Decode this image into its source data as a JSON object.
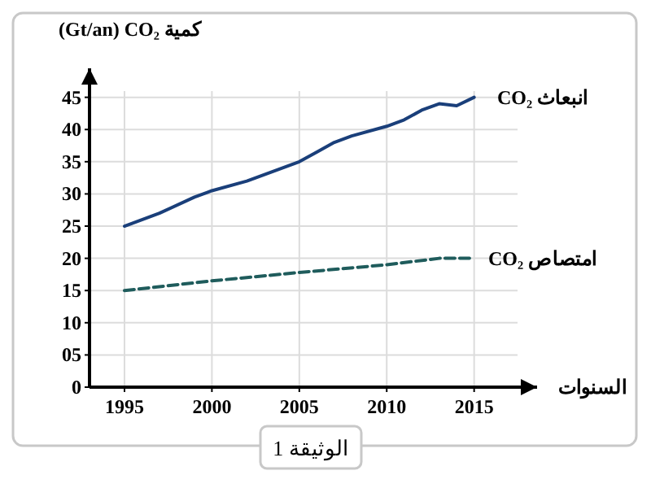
{
  "chart_data": {
    "type": "line",
    "ylabel": "(Gt/an) CO₂ كمية",
    "xlabel": "السنوات",
    "annotations": [
      "الوثيقة 1"
    ],
    "xlim": [
      1993,
      2018.6
    ],
    "xticks": [
      1995,
      2000,
      2005,
      2010,
      2015
    ],
    "ylim": [
      0,
      49.5
    ],
    "yticks": [
      0,
      {
        "value": 5,
        "label": "05"
      },
      10,
      15,
      20,
      25,
      30,
      35,
      40,
      45
    ],
    "grid": true,
    "series": [
      {
        "name": "انبعاث CO₂",
        "color": "#1a3f7a",
        "line_style": "solid",
        "x": [
          1995,
          1997,
          1999,
          2000,
          2002,
          2005,
          2006,
          2007,
          2008,
          2010,
          2011,
          2012,
          2013,
          2014,
          2015
        ],
        "values": [
          25,
          27,
          29.5,
          30.5,
          32,
          35,
          36.5,
          38,
          39,
          40.5,
          41.5,
          43,
          44,
          43.7,
          45
        ]
      },
      {
        "name": "امتصاص CO₂",
        "color": "#1f5c5c",
        "line_style": "dashed",
        "x": [
          1995,
          2000,
          2005,
          2010,
          2013,
          2015
        ],
        "values": [
          15,
          16.5,
          17.8,
          19,
          20,
          20
        ]
      }
    ]
  }
}
